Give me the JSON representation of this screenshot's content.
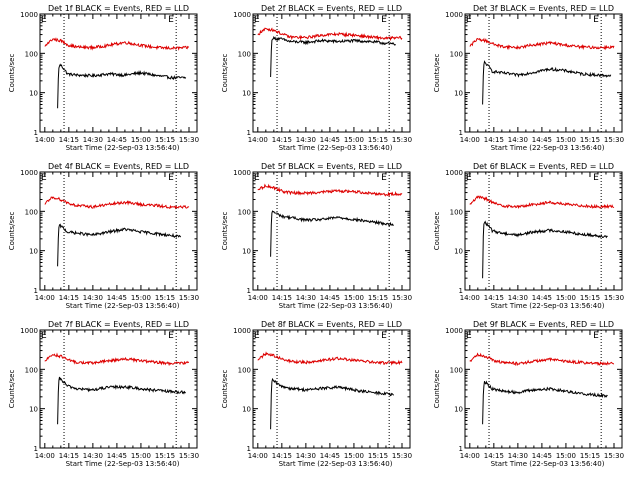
{
  "chart_data": [
    {
      "type": "line",
      "title": "Det 1f BLACK = Events, RED = LLD",
      "xlabel": "Start Time (22-Sep-03 13:56:40)",
      "ylabel": "Counts/sec",
      "yscale": "log",
      "ylim": [
        1,
        1000
      ],
      "xtick_labels": [
        "14:00",
        "14:15",
        "14:30",
        "14:45",
        "15:00",
        "15:15",
        "15:30"
      ],
      "ytick_labels": [
        "1",
        "10",
        "100",
        "1000"
      ],
      "markers": [
        "E",
        "E"
      ],
      "series": [
        {
          "name": "Events",
          "color": "#000000",
          "x_minutes": [
            8,
            9,
            10,
            14,
            20,
            30,
            40,
            50,
            60,
            70,
            80,
            88
          ],
          "values": [
            4,
            50,
            50,
            30,
            28,
            27,
            30,
            28,
            32,
            27,
            24,
            24
          ]
        },
        {
          "name": "LLD",
          "color": "#dd0000",
          "x_minutes": [
            0,
            5,
            10,
            15,
            20,
            30,
            40,
            50,
            60,
            70,
            80,
            90
          ],
          "values": [
            150,
            230,
            210,
            160,
            145,
            140,
            160,
            190,
            160,
            140,
            135,
            140
          ]
        }
      ]
    },
    {
      "type": "line",
      "title": "Det 2f BLACK = Events, RED = LLD",
      "xlabel": "Start Time (22-Sep-03 13:56:40)",
      "ylabel": "Counts/sec",
      "yscale": "log",
      "ylim": [
        1,
        1000
      ],
      "xtick_labels": [
        "14:00",
        "14:15",
        "14:30",
        "14:45",
        "15:00",
        "15:15",
        "15:30"
      ],
      "ytick_labels": [
        "1",
        "10",
        "100",
        "1000"
      ],
      "markers": [
        "E",
        "E"
      ],
      "series": [
        {
          "name": "Events",
          "color": "#000000",
          "x_minutes": [
            8,
            9,
            10,
            15,
            20,
            30,
            40,
            50,
            60,
            70,
            80,
            86
          ],
          "values": [
            25,
            250,
            240,
            230,
            200,
            190,
            210,
            200,
            210,
            200,
            180,
            170
          ]
        },
        {
          "name": "LLD",
          "color": "#dd0000",
          "x_minutes": [
            0,
            5,
            10,
            15,
            20,
            30,
            40,
            50,
            60,
            70,
            80,
            90
          ],
          "values": [
            300,
            420,
            390,
            310,
            260,
            250,
            290,
            310,
            290,
            260,
            240,
            250
          ]
        }
      ]
    },
    {
      "type": "line",
      "title": "Det 3f BLACK = Events, RED = LLD",
      "xlabel": "Start Time (22-Sep-03 13:56:40)",
      "ylabel": "Counts/sec",
      "yscale": "log",
      "ylim": [
        1,
        1000
      ],
      "xtick_labels": [
        "14:00",
        "14:15",
        "14:30",
        "14:45",
        "15:00",
        "15:15",
        "15:30"
      ],
      "ytick_labels": [
        "1",
        "10",
        "100",
        "1000"
      ],
      "markers": [
        "E",
        "E"
      ],
      "series": [
        {
          "name": "Events",
          "color": "#000000",
          "x_minutes": [
            8,
            9,
            10,
            14,
            20,
            30,
            40,
            50,
            60,
            70,
            80,
            88
          ],
          "values": [
            5,
            60,
            55,
            35,
            32,
            28,
            33,
            40,
            36,
            30,
            28,
            27
          ]
        },
        {
          "name": "LLD",
          "color": "#dd0000",
          "x_minutes": [
            0,
            5,
            10,
            15,
            20,
            30,
            40,
            50,
            60,
            70,
            80,
            90
          ],
          "values": [
            150,
            230,
            210,
            170,
            150,
            140,
            165,
            185,
            160,
            145,
            140,
            145
          ]
        }
      ]
    },
    {
      "type": "line",
      "title": "Det 4f BLACK = Events, RED = LLD",
      "xlabel": "Start Time (22-Sep-03 13:56:40)",
      "ylabel": "Counts/sec",
      "yscale": "log",
      "ylim": [
        1,
        1000
      ],
      "xtick_labels": [
        "14:00",
        "14:15",
        "14:30",
        "14:45",
        "15:00",
        "15:15",
        "15:30"
      ],
      "ytick_labels": [
        "1",
        "10",
        "100",
        "1000"
      ],
      "markers": [
        "E",
        "E"
      ],
      "series": [
        {
          "name": "Events",
          "color": "#000000",
          "x_minutes": [
            8,
            9,
            10,
            14,
            20,
            30,
            40,
            50,
            60,
            70,
            80,
            85
          ],
          "values": [
            4,
            45,
            42,
            30,
            28,
            25,
            30,
            35,
            30,
            27,
            24,
            22
          ]
        },
        {
          "name": "LLD",
          "color": "#dd0000",
          "x_minutes": [
            0,
            5,
            10,
            15,
            20,
            30,
            40,
            50,
            60,
            70,
            80,
            90
          ],
          "values": [
            150,
            230,
            200,
            160,
            140,
            130,
            150,
            170,
            150,
            140,
            125,
            130
          ]
        }
      ]
    },
    {
      "type": "line",
      "title": "Det 5f BLACK = Events, RED = LLD",
      "xlabel": "Start Time (22-Sep-03 13:56:40)",
      "ylabel": "Counts/sec",
      "yscale": "log",
      "ylim": [
        1,
        1000
      ],
      "xtick_labels": [
        "14:00",
        "14:15",
        "14:30",
        "14:45",
        "15:00",
        "15:15",
        "15:30"
      ],
      "ytick_labels": [
        "1",
        "10",
        "100",
        "1000"
      ],
      "markers": [
        "E",
        "E"
      ],
      "series": [
        {
          "name": "Events",
          "color": "#000000",
          "x_minutes": [
            8,
            9,
            10,
            15,
            20,
            30,
            40,
            50,
            60,
            70,
            80,
            85
          ],
          "values": [
            7,
            105,
            95,
            75,
            70,
            60,
            62,
            70,
            62,
            55,
            48,
            45
          ]
        },
        {
          "name": "LLD",
          "color": "#dd0000",
          "x_minutes": [
            0,
            5,
            10,
            15,
            20,
            30,
            40,
            50,
            60,
            70,
            80,
            90
          ],
          "values": [
            350,
            450,
            400,
            330,
            300,
            290,
            310,
            330,
            320,
            290,
            270,
            280
          ]
        }
      ]
    },
    {
      "type": "line",
      "title": "Det 6f BLACK = Events, RED = LLD",
      "xlabel": "Start Time (22-Sep-03 13:56:40)",
      "ylabel": "Counts/sec",
      "yscale": "log",
      "ylim": [
        1,
        1000
      ],
      "xtick_labels": [
        "14:00",
        "14:15",
        "14:30",
        "14:45",
        "15:00",
        "15:15",
        "15:30"
      ],
      "ytick_labels": [
        "1",
        "10",
        "100",
        "1000"
      ],
      "markers": [
        "E",
        "E"
      ],
      "series": [
        {
          "name": "Events",
          "color": "#000000",
          "x_minutes": [
            8,
            9,
            10,
            14,
            20,
            30,
            40,
            50,
            60,
            70,
            80,
            86
          ],
          "values": [
            2,
            55,
            50,
            32,
            28,
            25,
            30,
            33,
            30,
            26,
            24,
            23
          ]
        },
        {
          "name": "LLD",
          "color": "#dd0000",
          "x_minutes": [
            0,
            5,
            10,
            15,
            20,
            30,
            40,
            50,
            60,
            70,
            80,
            90
          ],
          "values": [
            150,
            230,
            210,
            160,
            140,
            130,
            150,
            170,
            150,
            140,
            130,
            135
          ]
        }
      ]
    },
    {
      "type": "line",
      "title": "Det 7f BLACK = Events, RED = LLD",
      "xlabel": "Start Time (22-Sep-03 13:56:40)",
      "ylabel": "Counts/sec",
      "yscale": "log",
      "ylim": [
        1,
        1000
      ],
      "xtick_labels": [
        "14:00",
        "14:15",
        "14:30",
        "14:45",
        "15:00",
        "15:15",
        "15:30"
      ],
      "ytick_labels": [
        "1",
        "10",
        "100",
        "1000"
      ],
      "markers": [
        "E",
        "E"
      ],
      "series": [
        {
          "name": "Events",
          "color": "#000000",
          "x_minutes": [
            8,
            9,
            10,
            14,
            20,
            30,
            40,
            50,
            60,
            70,
            80,
            88
          ],
          "values": [
            4,
            60,
            55,
            38,
            32,
            30,
            35,
            36,
            32,
            29,
            27,
            26
          ]
        },
        {
          "name": "LLD",
          "color": "#dd0000",
          "x_minutes": [
            0,
            5,
            10,
            15,
            20,
            30,
            40,
            50,
            60,
            70,
            80,
            90
          ],
          "values": [
            160,
            240,
            215,
            170,
            150,
            145,
            165,
            185,
            165,
            150,
            140,
            150
          ]
        }
      ]
    },
    {
      "type": "line",
      "title": "Det 8f BLACK = Events, RED = LLD",
      "xlabel": "Start Time (22-Sep-03 13:56:40)",
      "ylabel": "Counts/sec",
      "yscale": "log",
      "ylim": [
        1,
        1000
      ],
      "xtick_labels": [
        "14:00",
        "14:15",
        "14:30",
        "14:45",
        "15:00",
        "15:15",
        "15:30"
      ],
      "ytick_labels": [
        "1",
        "10",
        "100",
        "1000"
      ],
      "markers": [
        "E",
        "E"
      ],
      "series": [
        {
          "name": "Events",
          "color": "#000000",
          "x_minutes": [
            8,
            9,
            10,
            14,
            20,
            30,
            40,
            50,
            60,
            70,
            80,
            85
          ],
          "values": [
            3,
            55,
            50,
            38,
            33,
            30,
            33,
            35,
            30,
            26,
            24,
            22
          ]
        },
        {
          "name": "LLD",
          "color": "#dd0000",
          "x_minutes": [
            0,
            5,
            10,
            15,
            20,
            30,
            40,
            50,
            60,
            70,
            80,
            90
          ],
          "values": [
            170,
            250,
            225,
            180,
            160,
            150,
            170,
            190,
            170,
            155,
            145,
            150
          ]
        }
      ]
    },
    {
      "type": "line",
      "title": "Det 9f BLACK = Events, RED = LLD",
      "xlabel": "Start Time (22-Sep-03 13:56:40)",
      "ylabel": "Counts/sec",
      "yscale": "log",
      "ylim": [
        1,
        1000
      ],
      "xtick_labels": [
        "14:00",
        "14:15",
        "14:30",
        "14:45",
        "15:00",
        "15:15",
        "15:30"
      ],
      "ytick_labels": [
        "1",
        "10",
        "100",
        "1000"
      ],
      "markers": [
        "E",
        "E"
      ],
      "series": [
        {
          "name": "Events",
          "color": "#000000",
          "x_minutes": [
            8,
            9,
            10,
            14,
            20,
            30,
            40,
            50,
            60,
            70,
            80,
            86
          ],
          "values": [
            4,
            50,
            46,
            32,
            28,
            26,
            30,
            32,
            28,
            24,
            22,
            21
          ]
        },
        {
          "name": "LLD",
          "color": "#dd0000",
          "x_minutes": [
            0,
            5,
            10,
            15,
            20,
            30,
            40,
            50,
            60,
            70,
            80,
            90
          ],
          "values": [
            160,
            240,
            215,
            170,
            150,
            140,
            160,
            180,
            160,
            150,
            140,
            145
          ]
        }
      ]
    }
  ]
}
